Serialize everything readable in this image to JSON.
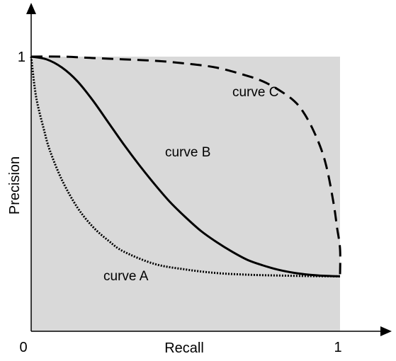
{
  "chart_data": {
    "type": "line",
    "xlabel": "Recall",
    "ylabel": "Precision",
    "xlim": [
      0,
      1
    ],
    "ylim": [
      0,
      1.2
    ],
    "x_ticks": [
      "0",
      "1"
    ],
    "y_ticks": [
      "1"
    ],
    "plot_background": "#d9d9d9",
    "grid": false,
    "series": [
      {
        "name": "curve A",
        "style": "dotted",
        "x": [
          0,
          0.01,
          0.02,
          0.04,
          0.06,
          0.1,
          0.15,
          0.2,
          0.25,
          0.3,
          0.4,
          0.5,
          0.6,
          0.7,
          0.8,
          0.9,
          1.0
        ],
        "y": [
          1.0,
          0.9,
          0.83,
          0.74,
          0.66,
          0.55,
          0.45,
          0.38,
          0.33,
          0.29,
          0.245,
          0.225,
          0.212,
          0.206,
          0.203,
          0.201,
          0.2
        ]
      },
      {
        "name": "curve B",
        "style": "solid",
        "x": [
          0,
          0.05,
          0.1,
          0.15,
          0.2,
          0.25,
          0.3,
          0.35,
          0.4,
          0.45,
          0.5,
          0.55,
          0.6,
          0.65,
          0.7,
          0.75,
          0.8,
          0.85,
          0.9,
          0.95,
          1.0
        ],
        "y": [
          1.0,
          0.99,
          0.96,
          0.91,
          0.84,
          0.76,
          0.68,
          0.605,
          0.535,
          0.47,
          0.415,
          0.365,
          0.325,
          0.29,
          0.26,
          0.24,
          0.224,
          0.213,
          0.206,
          0.202,
          0.2
        ]
      },
      {
        "name": "curve C",
        "style": "dashed",
        "x": [
          0,
          0.1,
          0.2,
          0.3,
          0.4,
          0.5,
          0.6,
          0.7,
          0.75,
          0.8,
          0.85,
          0.88,
          0.91,
          0.94,
          0.96,
          0.98,
          0.99,
          1.0,
          1.0
        ],
        "y": [
          1.0,
          1.0,
          0.995,
          0.99,
          0.985,
          0.975,
          0.96,
          0.93,
          0.91,
          0.88,
          0.84,
          0.8,
          0.74,
          0.66,
          0.58,
          0.46,
          0.38,
          0.3,
          0.2
        ]
      }
    ]
  }
}
